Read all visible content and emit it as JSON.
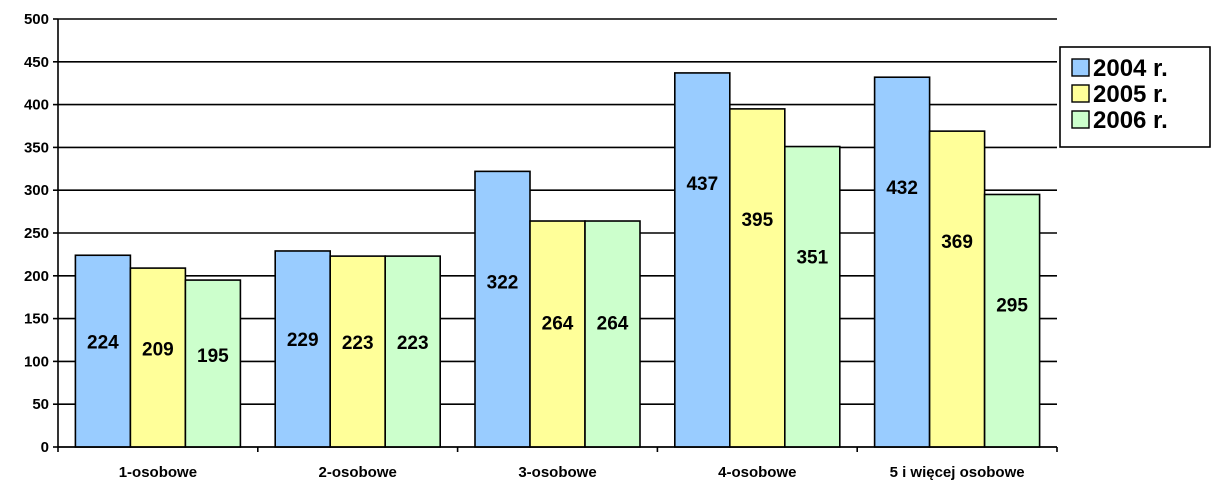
{
  "chart_data": {
    "type": "bar",
    "title": "",
    "xlabel": "",
    "ylabel": "",
    "categories": [
      "1-osobowe",
      "2-osobowe",
      "3-osobowe",
      "4-osobowe",
      "5 i więcej osobowe"
    ],
    "series": [
      {
        "name": "2004 r.",
        "values": [
          224,
          229,
          322,
          437,
          432
        ],
        "color": "#99CCFF"
      },
      {
        "name": "2005 r.",
        "values": [
          209,
          223,
          264,
          395,
          369
        ],
        "color": "#FFFF99"
      },
      {
        "name": "2006 r.",
        "values": [
          195,
          223,
          264,
          351,
          295
        ],
        "color": "#CCFFCC"
      }
    ],
    "ylim": [
      0,
      500
    ],
    "yticks": [
      0,
      50,
      100,
      150,
      200,
      250,
      300,
      350,
      400,
      450,
      500
    ],
    "grid": true,
    "legend_position": "right",
    "data_labels": true
  }
}
